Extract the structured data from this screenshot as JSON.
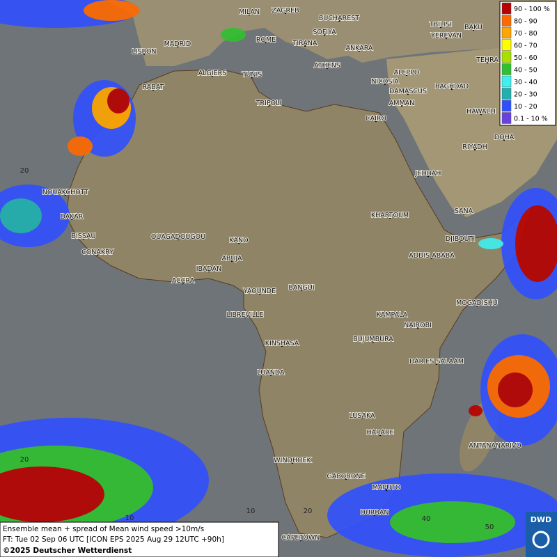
{
  "legend": {
    "items": [
      {
        "label": "90 - 100 %",
        "color": "#b80000"
      },
      {
        "label": "80 - 90",
        "color": "#ff6a00"
      },
      {
        "label": "70 - 80",
        "color": "#ffa500"
      },
      {
        "label": "60 - 70",
        "color": "#ffff00"
      },
      {
        "label": "50 - 60",
        "color": "#a8e000"
      },
      {
        "label": "40 - 50",
        "color": "#30c030"
      },
      {
        "label": "30 - 40",
        "color": "#40f0f0"
      },
      {
        "label": "20 - 30",
        "color": "#20b0b0"
      },
      {
        "label": "10 - 20",
        "color": "#3050ff"
      },
      {
        "label": "0.1 - 10 %",
        "color": "#6a40e0"
      }
    ]
  },
  "cities": [
    "MILAN",
    "ZAGREB",
    "BUCHAREST",
    "TBILISI",
    "BAKU",
    "SOFIYA",
    "YEREVAN",
    "LISBON",
    "MADRID",
    "ROME",
    "TIRANA",
    "ANKARA",
    "TEHRA",
    "ATHENS",
    "ALGIERS",
    "TUNIS",
    "ALEPPO",
    "RABAT",
    "NICOSIA",
    "BAGHDAD",
    "DAMASCUS",
    "TRIPOLI",
    "AMMAN",
    "HAWALLI",
    "CAIRO",
    "DOHA",
    "RIYADH",
    "JEDDAH",
    "NOUAKCHOTT",
    "SANA",
    "DAKAR",
    "KHARTOUM",
    "BISSAU",
    "OUAGADOUGOU",
    "DJIBOUTI",
    "KANO",
    "CONAKRY",
    "ABUJA",
    "ADDIS ABABA",
    "IBADAN",
    "ACCRA",
    "YAOUNDE",
    "BANGUI",
    "MOGADISHU",
    "LIBREVILLE",
    "KAMPALA",
    "NAIROBI",
    "BUJUMBURA",
    "KINSHASA",
    "DAR ES SALAAM",
    "LUANDA",
    "LUSAKA",
    "HARARE",
    "ANTANANARIVO",
    "WINDHOEK",
    "GABORONE",
    "MAPUTO",
    "DURBAN",
    "CAPETOWN"
  ],
  "grid_labels": [
    "20",
    "20",
    "10",
    "10",
    "20",
    "40",
    "50"
  ],
  "caption": {
    "line1": "Ensemble mean + spread of Mean wind speed >10m/s",
    "line2": "FT: Tue 02 Sep 06 UTC [ICON EPS 2025 Aug 29 12UTC +90h]",
    "line3": "©2025 Deutscher Wetterdienst"
  },
  "logo": "DWD"
}
